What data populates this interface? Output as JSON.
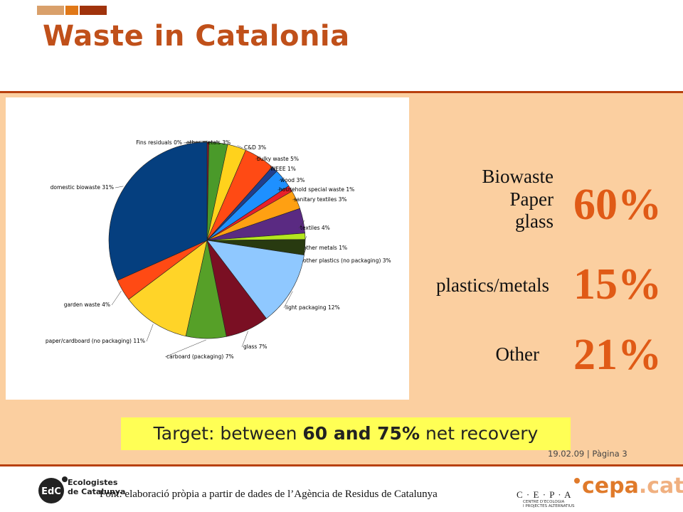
{
  "header": {
    "title": "Waste in Catalonia"
  },
  "colors": {
    "accent": "#c0501a",
    "band": "#fbcfa0",
    "highlight": "#ffff55",
    "percent": "#e05a16"
  },
  "chart_data": {
    "type": "pie",
    "slices": [
      {
        "label": "Fins residuals 0%",
        "value": 0.3,
        "color": "#8b1a2a"
      },
      {
        "label": "other metals 3%",
        "value": 3,
        "color": "#4a9a2a"
      },
      {
        "label": "C&D 3%",
        "value": 3,
        "color": "#ffd21c"
      },
      {
        "label": "bulky waste 5%",
        "value": 5,
        "color": "#ff4a14"
      },
      {
        "label": "WEEE 1%",
        "value": 1,
        "color": "#1f3f8f"
      },
      {
        "label": "wood 3%",
        "value": 3,
        "color": "#1e90ff"
      },
      {
        "label": "household special waste 1%",
        "value": 1,
        "color": "#e8202a"
      },
      {
        "label": "sanitary textiles 3%",
        "value": 3,
        "color": "#ffa012"
      },
      {
        "label": "textiles 4%",
        "value": 4,
        "color": "#5a2a82"
      },
      {
        "label": "other metals 1%",
        "value": 1,
        "color": "#b4e61e"
      },
      {
        "label": "other plastics (no packaging) 3%",
        "value": 2.5,
        "color": "#283a10"
      },
      {
        "label": "light packaging 12%",
        "value": 12,
        "color": "#8fc8ff"
      },
      {
        "label": "glass 7%",
        "value": 7,
        "color": "#7a0f23"
      },
      {
        "label": "carboard (packaging) 7%",
        "value": 6.5,
        "color": "#56a028"
      },
      {
        "label": "paper/cardboard (no packaging) 11%",
        "value": 11,
        "color": "#ffd428"
      },
      {
        "label": "garden waste 4%",
        "value": 3.5,
        "color": "#ff4a14"
      },
      {
        "label": "domestic biowaste 31%",
        "value": 31,
        "color": "#053f7f"
      }
    ]
  },
  "summary": [
    {
      "categories": [
        "Biowaste",
        "Paper",
        "glass"
      ],
      "percent": "60%"
    },
    {
      "categories": [
        "plastics/metals"
      ],
      "percent": "15%"
    },
    {
      "categories": [
        "Other"
      ],
      "percent": "21%"
    }
  ],
  "target": {
    "prefix": "Target: between ",
    "emphasis": "60 and 75%",
    "suffix": " net recovery"
  },
  "footer": {
    "page_info": "19.02.09  |  Pàgina 3",
    "source": "Font: elaboració pròpia a partir de dades de l’Agència de Residus de Catalunya",
    "edc_abbr": "EdC",
    "edc_line1": "Ecologistes",
    "edc_line2": "de Catalunya",
    "cepa_letters": "C · E · P · A",
    "cepa_sub1": "CENTRE D’ECOLOGIA",
    "cepa_sub2": "I PROJECTES ALTERNATIUS",
    "cepa_domain": "cepa",
    "cepa_tld": ".cat"
  }
}
